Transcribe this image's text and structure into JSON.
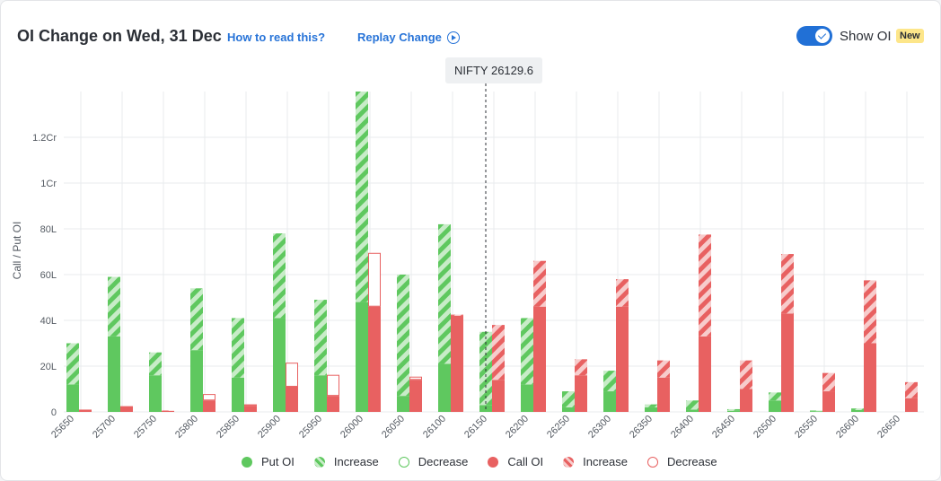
{
  "header": {
    "title": "OI Change on Wed, 31 Dec",
    "how_to_read": "How to read this?",
    "replay_label": "Replay Change",
    "show_oi_label": "Show OI",
    "show_oi_on": true,
    "new_badge": "New"
  },
  "spot": {
    "label": "NIFTY 26129.6",
    "value": 26129.6
  },
  "legend": [
    {
      "key": "put-oi",
      "label": "Put OI"
    },
    {
      "key": "put-increase",
      "label": "Increase"
    },
    {
      "key": "put-decrease",
      "label": "Decrease"
    },
    {
      "key": "call-oi",
      "label": "Call OI"
    },
    {
      "key": "call-increase",
      "label": "Increase"
    },
    {
      "key": "call-decrease",
      "label": "Decrease"
    }
  ],
  "colors": {
    "put": "#5fc85f",
    "put_light": "#c8ecc8",
    "call": "#e86161",
    "call_light": "#f7cccc",
    "accent": "#2874d8",
    "grid": "#e9ebee"
  },
  "chart_data": {
    "type": "bar",
    "ylabel": "Call / Put OI",
    "unit": "lakh",
    "ylim": [
      0,
      140
    ],
    "yticks": [
      {
        "value": 0,
        "label": "0"
      },
      {
        "value": 20,
        "label": "20L"
      },
      {
        "value": 40,
        "label": "40L"
      },
      {
        "value": 60,
        "label": "60L"
      },
      {
        "value": 80,
        "label": "80L"
      },
      {
        "value": 100,
        "label": "1Cr"
      },
      {
        "value": 120,
        "label": "1.2Cr"
      }
    ],
    "strikes": [
      "25650",
      "25700",
      "25750",
      "25800",
      "25850",
      "25900",
      "25950",
      "26000",
      "26050",
      "26100",
      "26150",
      "26200",
      "26250",
      "26300",
      "26350",
      "26400",
      "26450",
      "26500",
      "26550",
      "26600",
      "26650"
    ],
    "spot_strike_position": 10.0,
    "put_oi": [
      12,
      33,
      16,
      27,
      15,
      41,
      16,
      48,
      7,
      21,
      3,
      12,
      2,
      9,
      2,
      1,
      0.5,
      5,
      0.3,
      0.8,
      0
    ],
    "put_change": [
      18,
      26,
      10,
      27,
      26,
      37,
      33,
      92,
      53,
      61,
      32,
      29,
      7,
      9,
      1.3,
      4,
      0.7,
      3.5,
      0.3,
      0.7,
      0
    ],
    "call_oi": [
      1,
      2.5,
      0.4,
      5,
      2.5,
      11,
      7,
      46,
      14,
      42,
      14,
      46,
      16,
      46,
      15,
      33,
      10,
      43,
      9,
      30,
      6
    ],
    "call_change": [
      0,
      0,
      0.2,
      -2.8,
      -0.8,
      -10.5,
      -9.2,
      -23.5,
      -1.4,
      0.5,
      24,
      20,
      7,
      12,
      7.5,
      44.5,
      12.5,
      26,
      8,
      27.5,
      7
    ]
  }
}
